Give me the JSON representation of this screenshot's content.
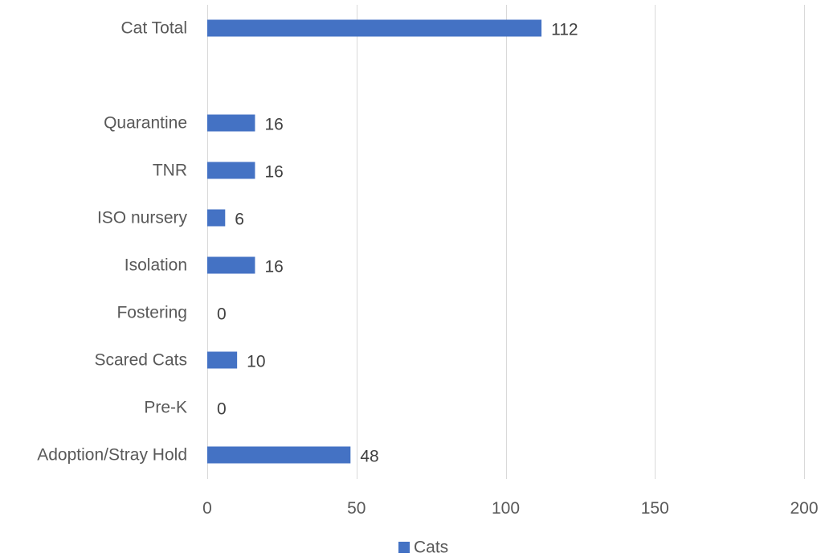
{
  "chart_data": {
    "type": "bar",
    "orientation": "horizontal",
    "categories": [
      "Cat Total",
      "",
      "Quarantine",
      "TNR",
      "ISO nursery",
      "Isolation",
      "Fostering",
      "Scared Cats",
      "Pre-K",
      "Adoption/Stray Hold"
    ],
    "series": [
      {
        "name": "Cats",
        "values": [
          112,
          null,
          16,
          16,
          6,
          16,
          0,
          10,
          0,
          48
        ]
      }
    ],
    "data_labels": [
      "112",
      "",
      "16",
      "16",
      "6",
      "16",
      "0",
      "10",
      "0",
      "48"
    ],
    "x_ticks": [
      0,
      50,
      100,
      150,
      200
    ],
    "x_tick_labels": [
      "0",
      "50",
      "100",
      "150",
      "200"
    ],
    "xlim": [
      0,
      200
    ],
    "title": "",
    "xlabel": "",
    "ylabel": "",
    "grid": "vertical",
    "legend": {
      "position": "bottom",
      "label": "Cats"
    },
    "colors": {
      "bar": "#4472c4",
      "grid": "#d9d9d9",
      "text": "#595959"
    }
  }
}
